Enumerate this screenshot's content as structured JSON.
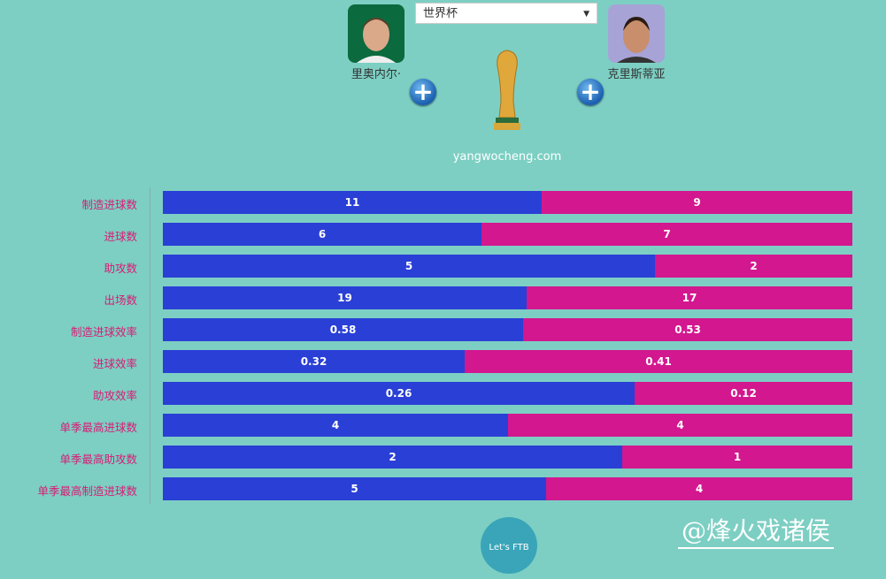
{
  "header": {
    "competition_select": "世界杯",
    "site": "yangwocheng.com"
  },
  "players": [
    {
      "name": "里奥内尔·",
      "photo_bg": "#0b6a3e"
    },
    {
      "name": "克里斯蒂亚",
      "photo_bg": "#a7a3d6"
    }
  ],
  "footer": {
    "logo_text": "Let's FTB",
    "watermark": "@烽火戏诸侯"
  },
  "chart_data": {
    "type": "bar",
    "orientation": "horizontal",
    "stacked": "percent",
    "categories": [
      "制造进球数",
      "进球数",
      "助攻数",
      "出场数",
      "制造进球效率",
      "进球效率",
      "助攻效率",
      "单季最高进球数",
      "单季最高助攻数",
      "单季最高制造进球数"
    ],
    "series": [
      {
        "color": "#2a3fd6",
        "values": [
          11,
          6,
          5,
          19,
          0.58,
          0.32,
          0.26,
          4,
          2,
          5
        ]
      },
      {
        "color": "#d3178f",
        "values": [
          9,
          7,
          2,
          17,
          0.53,
          0.41,
          0.12,
          4,
          1,
          4
        ]
      }
    ],
    "grid": false
  }
}
